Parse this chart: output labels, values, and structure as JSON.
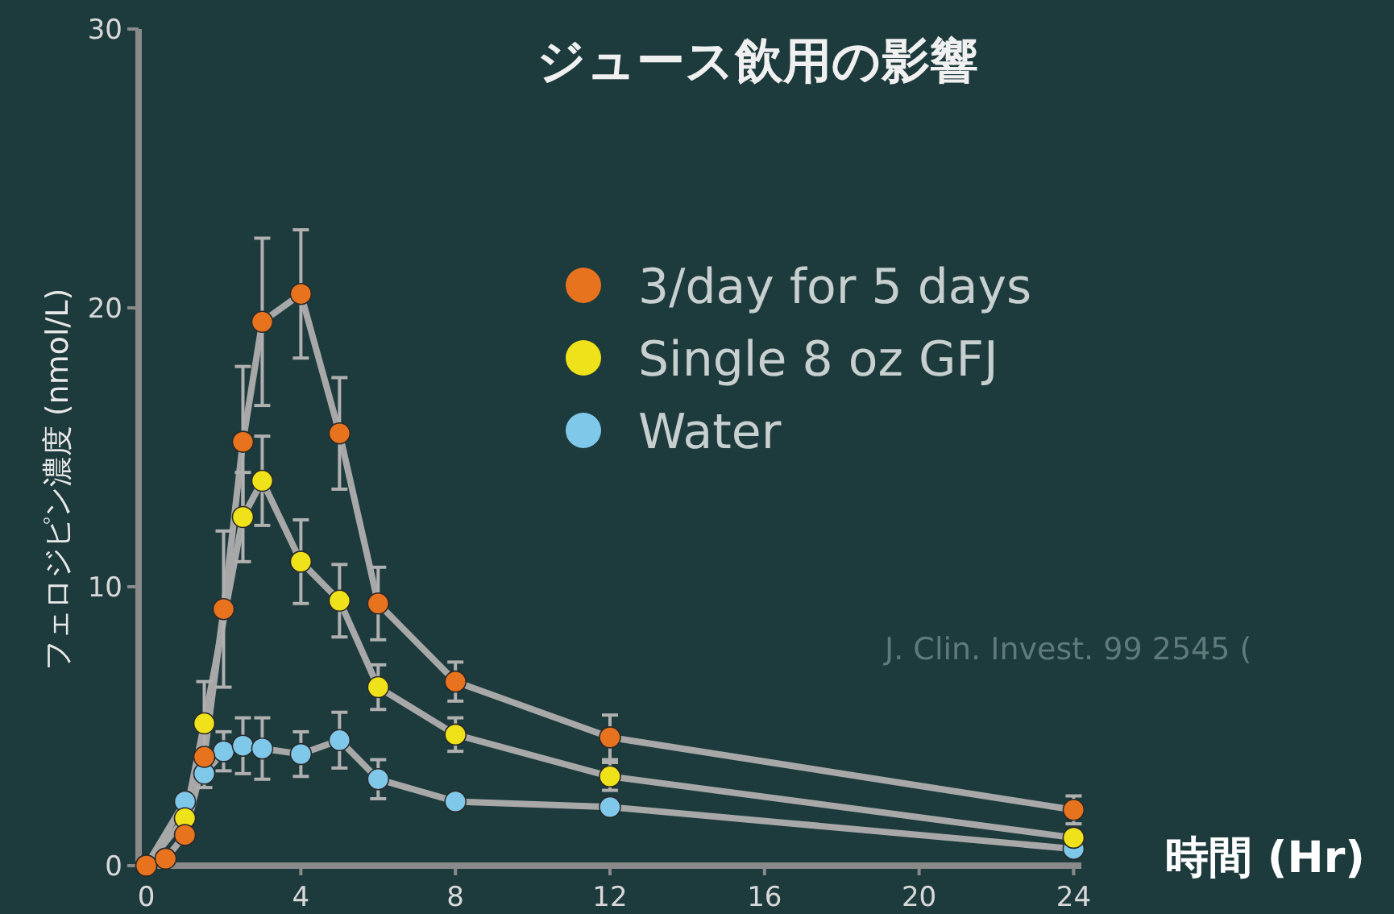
{
  "chart_data": {
    "type": "line",
    "title": "ジュース飲用の影響",
    "xlabel": "時間 (Hr)",
    "ylabel": "フェロジピン濃度 (nmol/L)",
    "xlim": [
      -0.2,
      24.2
    ],
    "ylim": [
      0,
      30
    ],
    "xticks": [
      0,
      4,
      8,
      12,
      16,
      20,
      24
    ],
    "yticks": [
      0,
      10,
      20,
      30
    ],
    "grid": false,
    "legend": "top",
    "marker": "circle",
    "line_style": "solid",
    "annotations": [
      "J. Clin. Invest. 99 2545 ("
    ],
    "series": [
      {
        "name": "3/day for 5 days",
        "color": "#e8731f",
        "x": [
          0,
          0.5,
          1,
          1.5,
          2,
          2.5,
          3,
          4,
          5,
          6,
          8,
          12,
          24
        ],
        "values": [
          0,
          0.25,
          1.1,
          3.9,
          9.2,
          15.2,
          19.5,
          20.5,
          15.5,
          9.4,
          6.6,
          4.6,
          2.0
        ],
        "errors": [
          null,
          null,
          null,
          null,
          2.8,
          2.7,
          3,
          2.3,
          2,
          1.3,
          0.7,
          0.8,
          0.5
        ]
      },
      {
        "name": "Single 8 oz GFJ",
        "color": "#f0e21a",
        "x": [
          0,
          1,
          1.5,
          2.5,
          3,
          4,
          5,
          6,
          8,
          12,
          24
        ],
        "values": [
          0,
          1.7,
          5.1,
          12.5,
          13.8,
          10.9,
          9.5,
          6.4,
          4.7,
          3.2,
          1.0
        ],
        "errors": [
          null,
          null,
          1.5,
          1.6,
          1.6,
          1.5,
          1.3,
          0.8,
          0.6,
          0.5,
          null
        ]
      },
      {
        "name": "Water",
        "color": "#7fc8ea",
        "x": [
          0,
          1,
          1.5,
          2,
          2.5,
          3,
          4,
          5,
          6,
          8,
          12,
          24
        ],
        "values": [
          0,
          2.3,
          3.3,
          4.1,
          4.3,
          4.2,
          4.0,
          4.5,
          3.1,
          2.3,
          2.1,
          0.6
        ],
        "errors": [
          null,
          null,
          0.5,
          0.7,
          1,
          1.1,
          0.8,
          1,
          0.7,
          null,
          null,
          null
        ]
      }
    ]
  }
}
